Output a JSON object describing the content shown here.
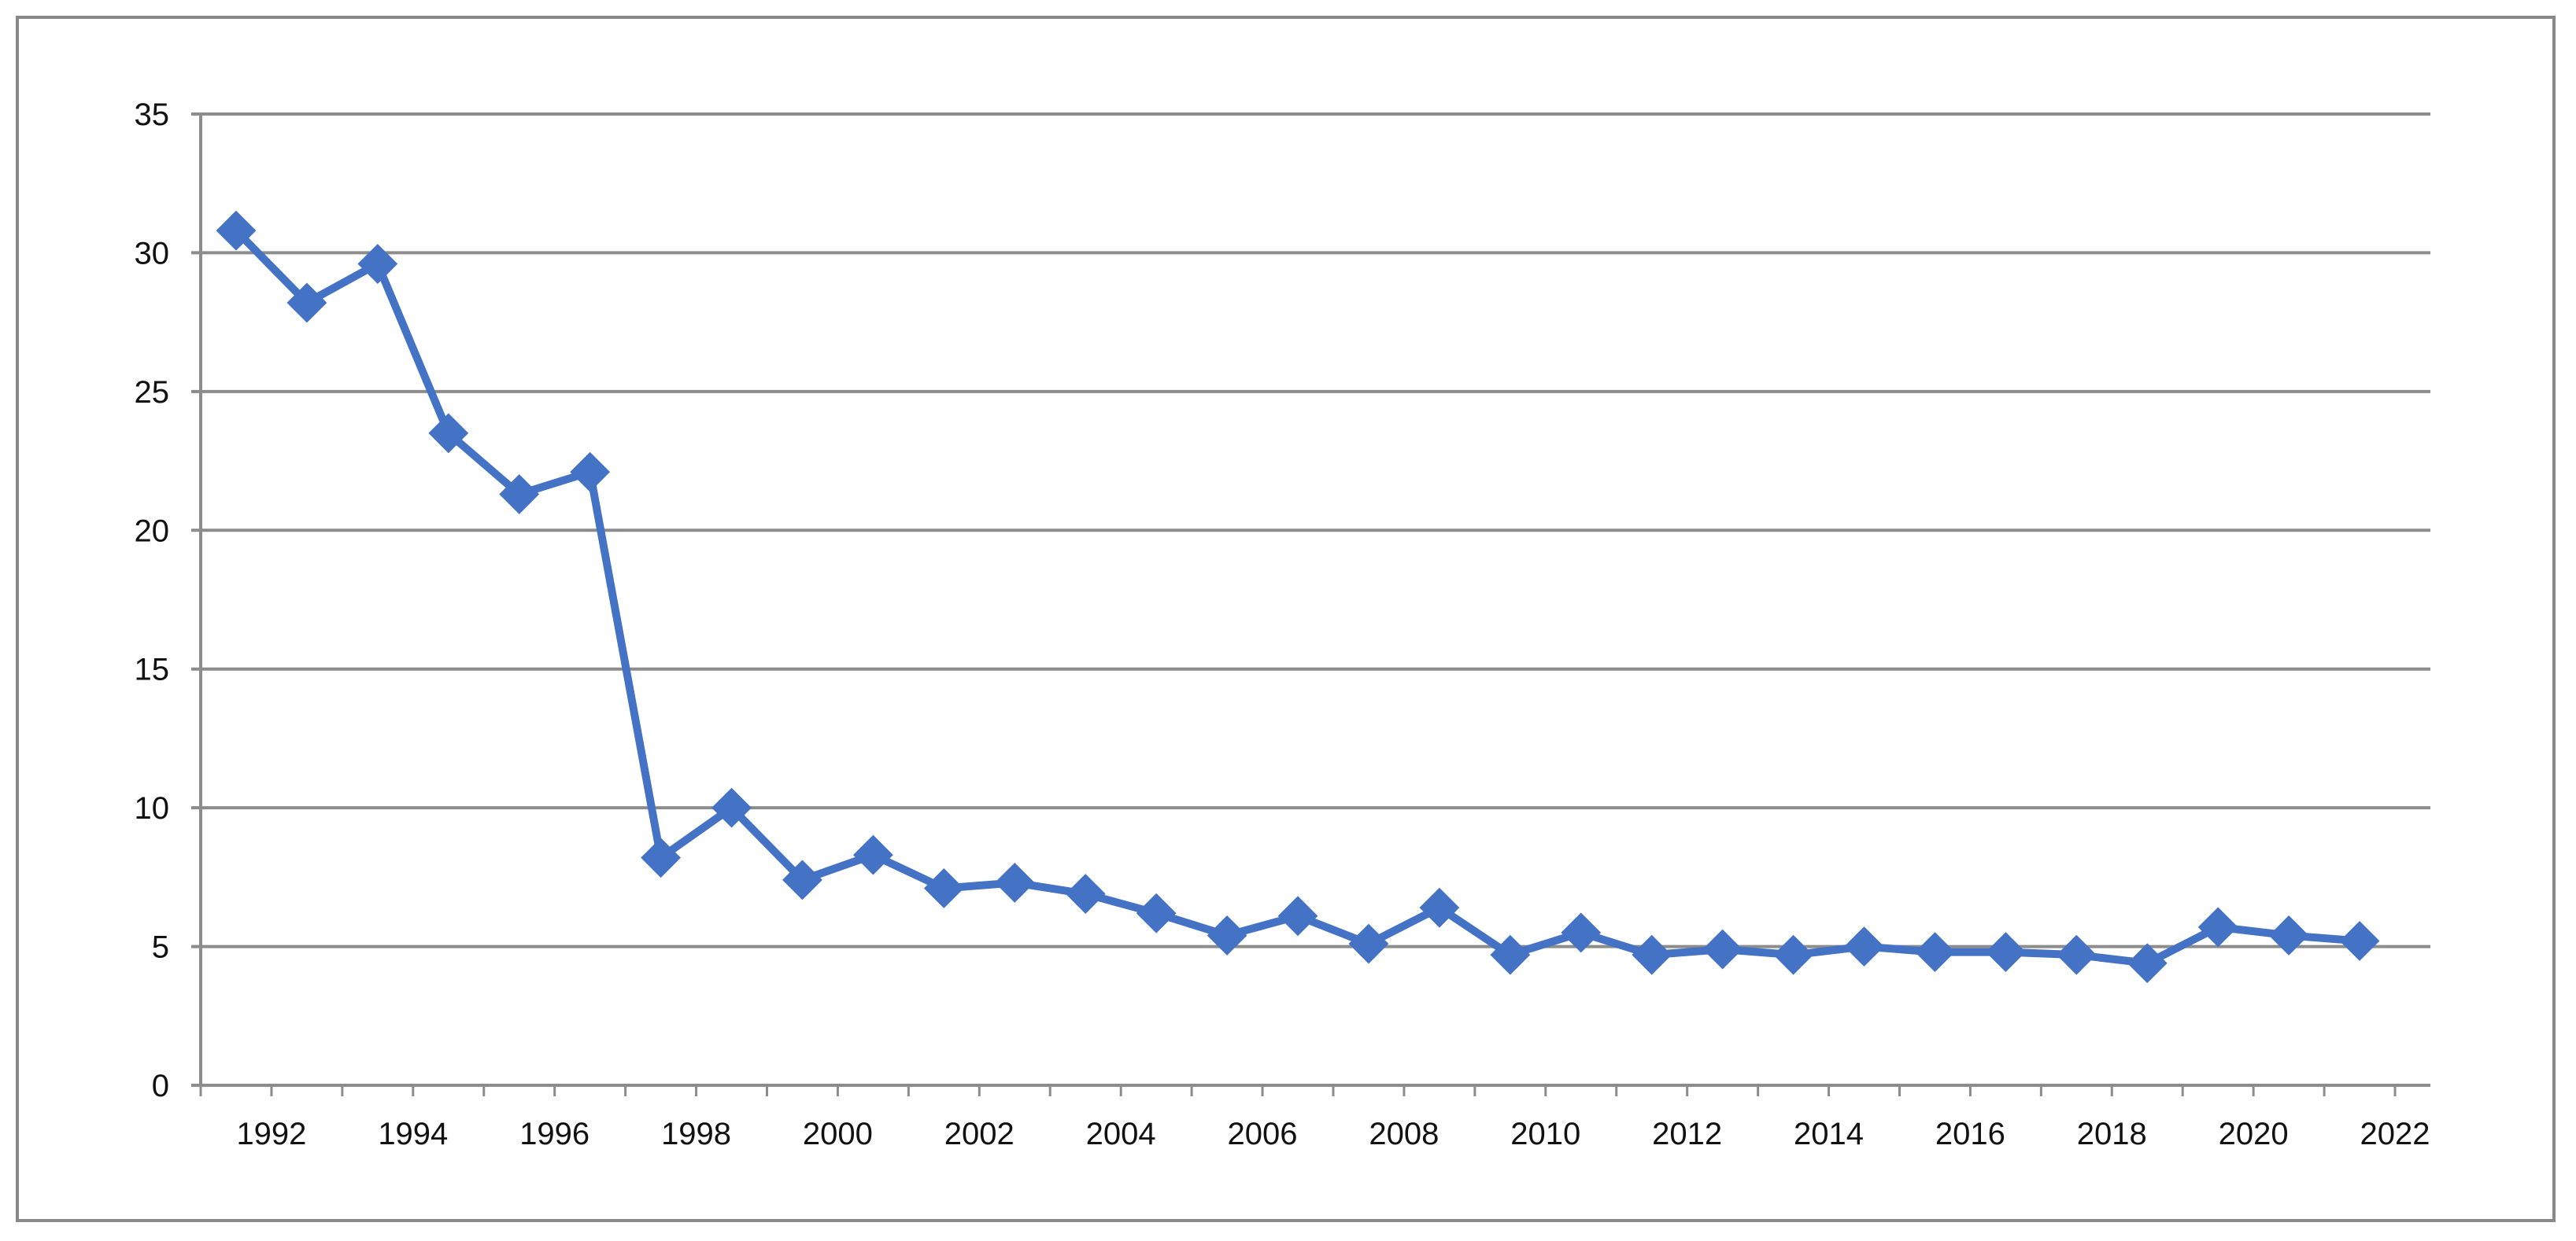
{
  "chart_data": {
    "type": "line",
    "title": "",
    "xlabel": "",
    "ylabel": "",
    "ylim": [
      0,
      35
    ],
    "yticks": [
      "0",
      "5",
      "10",
      "15",
      "20",
      "25",
      "30",
      "35"
    ],
    "xticks": [
      "1992",
      "1994",
      "1996",
      "1998",
      "2000",
      "2002",
      "2004",
      "2006",
      "2008",
      "2010",
      "2012",
      "2014",
      "2016",
      "2018",
      "2020",
      "2022"
    ],
    "grid": true,
    "legend": "none",
    "series": [
      {
        "color": "#4472C4",
        "marker": "diamond",
        "x": [
          1991.5,
          1992.5,
          1993.5,
          1994.5,
          1995.5,
          1996.5,
          1997.5,
          1998.5,
          1999.5,
          2000.5,
          2001.5,
          2002.5,
          2003.5,
          2004.5,
          2005.5,
          2006.5,
          2007.5,
          2008.5,
          2009.5,
          2010.5,
          2011.5,
          2012.5,
          2013.5,
          2014.5,
          2015.5,
          2016.5,
          2017.5,
          2018.5,
          2019.5,
          2020.5,
          2021.5
        ],
        "values": [
          30.8,
          28.2,
          29.6,
          23.5,
          21.3,
          22.1,
          8.2,
          10.0,
          7.4,
          8.3,
          7.1,
          7.3,
          6.9,
          6.2,
          5.4,
          6.1,
          5.1,
          6.4,
          4.7,
          5.5,
          4.7,
          4.9,
          4.7,
          5.0,
          4.8,
          4.8,
          4.7,
          4.4,
          5.7,
          5.4,
          5.2
        ]
      }
    ]
  }
}
